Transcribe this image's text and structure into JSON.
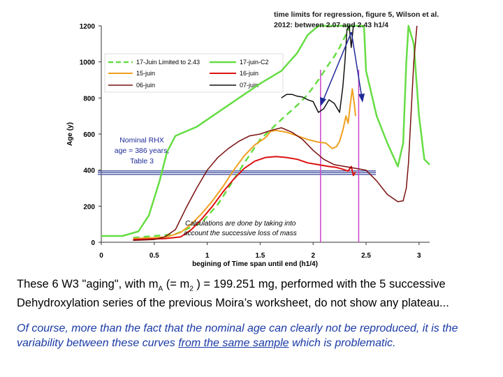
{
  "chart_data": {
    "type": "line",
    "title": "",
    "xlabel": "begining of Time span until end (h1/4)",
    "ylabel": "Age (y)",
    "xlim": [
      0,
      3.1
    ],
    "ylim": [
      0,
      1200
    ],
    "xticks": [
      "0",
      "0.5",
      "1",
      "1.5",
      "2",
      "2.5",
      "3"
    ],
    "xtick_values": [
      0,
      0.5,
      1,
      1.5,
      2,
      2.5,
      3
    ],
    "yticks": [
      "0",
      "200",
      "400",
      "600",
      "800",
      "1000",
      "1200"
    ],
    "ytick_values": [
      0,
      200,
      400,
      600,
      800,
      1000,
      1200
    ],
    "legend_position": "top-left",
    "series": [
      {
        "name": "17-Juin  Limited to 2.43",
        "color": "#66dd44",
        "dash": "dashed",
        "points": [
          [
            0.3,
            25
          ],
          [
            0.7,
            45
          ],
          [
            0.95,
            110
          ],
          [
            1.1,
            210
          ],
          [
            1.2,
            300
          ],
          [
            1.35,
            440
          ],
          [
            1.5,
            570
          ],
          [
            1.7,
            680
          ],
          [
            1.85,
            760
          ],
          [
            1.95,
            820
          ],
          [
            2.05,
            900
          ],
          [
            2.15,
            990
          ],
          [
            2.2,
            1030
          ],
          [
            2.25,
            1080
          ],
          [
            2.3,
            1140
          ],
          [
            2.35,
            1230
          ]
        ]
      },
      {
        "name": "17-juin-C2",
        "color": "#66dd44",
        "dash": "solid",
        "points": [
          [
            0,
            35
          ],
          [
            0.2,
            35
          ],
          [
            0.35,
            60
          ],
          [
            0.45,
            150
          ],
          [
            0.55,
            340
          ],
          [
            0.62,
            500
          ],
          [
            0.7,
            590
          ],
          [
            0.8,
            615
          ],
          [
            0.9,
            640
          ],
          [
            1.05,
            700
          ],
          [
            1.3,
            800
          ],
          [
            1.5,
            880
          ],
          [
            1.7,
            950
          ],
          [
            1.85,
            1050
          ],
          [
            1.95,
            1150
          ],
          [
            2.05,
            1230
          ],
          [
            2.3,
            1230
          ],
          [
            2.48,
            1230
          ],
          [
            2.5,
            950
          ],
          [
            2.6,
            700
          ],
          [
            2.7,
            550
          ],
          [
            2.8,
            420
          ],
          [
            2.85,
            550
          ],
          [
            2.88,
            1000
          ],
          [
            2.9,
            1230
          ],
          [
            2.95,
            1100
          ],
          [
            3.0,
            700
          ],
          [
            3.05,
            460
          ],
          [
            3.1,
            430
          ]
        ]
      },
      {
        "name": "15-juin",
        "color": "#f0a020",
        "dash": "solid",
        "points": [
          [
            0.3,
            20
          ],
          [
            0.5,
            25
          ],
          [
            0.62,
            30
          ],
          [
            0.75,
            55
          ],
          [
            0.85,
            100
          ],
          [
            0.95,
            160
          ],
          [
            1.05,
            230
          ],
          [
            1.15,
            310
          ],
          [
            1.25,
            400
          ],
          [
            1.35,
            480
          ],
          [
            1.45,
            540
          ],
          [
            1.55,
            580
          ],
          [
            1.6,
            615
          ],
          [
            1.65,
            620
          ],
          [
            1.75,
            610
          ],
          [
            1.85,
            590
          ],
          [
            1.95,
            570
          ],
          [
            2.05,
            555
          ],
          [
            2.12,
            550
          ],
          [
            2.18,
            520
          ],
          [
            2.22,
            530
          ],
          [
            2.25,
            560
          ],
          [
            2.28,
            620
          ],
          [
            2.31,
            700
          ],
          [
            2.33,
            660
          ],
          [
            2.35,
            760
          ],
          [
            2.37,
            850
          ],
          [
            2.39,
            760
          ],
          [
            2.4,
            700
          ]
        ]
      },
      {
        "name": "16-juin",
        "color": "#dd1111",
        "dash": "solid",
        "points": [
          [
            0.3,
            15
          ],
          [
            0.6,
            20
          ],
          [
            0.75,
            30
          ],
          [
            0.85,
            70
          ],
          [
            0.95,
            130
          ],
          [
            1.05,
            200
          ],
          [
            1.15,
            280
          ],
          [
            1.25,
            350
          ],
          [
            1.35,
            410
          ],
          [
            1.45,
            450
          ],
          [
            1.55,
            470
          ],
          [
            1.65,
            475
          ],
          [
            1.75,
            470
          ],
          [
            1.85,
            460
          ],
          [
            1.95,
            440
          ],
          [
            2.05,
            430
          ],
          [
            2.15,
            420
          ],
          [
            2.22,
            415
          ],
          [
            2.28,
            405
          ],
          [
            2.33,
            395
          ],
          [
            2.36,
            420
          ],
          [
            2.38,
            370
          ],
          [
            2.4,
            390
          ]
        ]
      },
      {
        "name": "06-juin",
        "color": "#7a1010",
        "dash": "solid",
        "points": [
          [
            0.3,
            10
          ],
          [
            0.5,
            15
          ],
          [
            0.6,
            30
          ],
          [
            0.7,
            70
          ],
          [
            0.8,
            190
          ],
          [
            0.9,
            300
          ],
          [
            1.0,
            400
          ],
          [
            1.1,
            470
          ],
          [
            1.2,
            520
          ],
          [
            1.3,
            560
          ],
          [
            1.4,
            590
          ],
          [
            1.5,
            600
          ],
          [
            1.6,
            620
          ],
          [
            1.7,
            635
          ],
          [
            1.8,
            610
          ],
          [
            1.9,
            570
          ],
          [
            2.0,
            510
          ],
          [
            2.1,
            460
          ],
          [
            2.2,
            430
          ],
          [
            2.3,
            420
          ],
          [
            2.4,
            410
          ],
          [
            2.5,
            400
          ],
          [
            2.6,
            340
          ],
          [
            2.7,
            265
          ],
          [
            2.8,
            225
          ],
          [
            2.85,
            230
          ],
          [
            2.88,
            300
          ],
          [
            2.9,
            440
          ],
          [
            2.95,
            1000
          ],
          [
            2.98,
            1230
          ]
        ]
      },
      {
        "name": "07-juin",
        "color": "#111111",
        "dash": "solid",
        "points": [
          [
            1.7,
            800
          ],
          [
            1.75,
            820
          ],
          [
            1.8,
            820
          ],
          [
            1.85,
            810
          ],
          [
            1.9,
            805
          ],
          [
            1.95,
            790
          ],
          [
            2.0,
            780
          ],
          [
            2.05,
            720
          ],
          [
            2.1,
            740
          ],
          [
            2.15,
            790
          ],
          [
            2.2,
            770
          ],
          [
            2.25,
            720
          ],
          [
            2.28,
            860
          ],
          [
            2.3,
            1000
          ],
          [
            2.32,
            1180
          ],
          [
            2.34,
            1230
          ],
          [
            2.36,
            1080
          ],
          [
            2.38,
            1230
          ]
        ]
      }
    ],
    "reference_lines": {
      "y": [
        376,
        386,
        396
      ],
      "color": "#5561a8"
    },
    "vertical_markers": {
      "x": [
        2.07,
        2.43
      ],
      "color": "#cc44cc"
    },
    "annotations": {
      "top_text": "time limits for regression, figure 5, Wilson et al. 2012: between 2.07 and 2.43 h1/4",
      "top_text_line1": "time limits for regression, figure 5, Wilson et al.",
      "top_text_line2": "2012: between 2.07 and 2.43 h1/4",
      "nominal_line1": "Nominal RHX",
      "nominal_line2": "age = 386 years,",
      "nominal_line3": "Table 3",
      "calc_line1": "Calculations are done by taking into",
      "calc_line2": "account the successive loss of mass"
    }
  },
  "caption": {
    "line1_pre": "These 6 W3 \"aging\", with m",
    "line1_sub": "A",
    "line1_mid": " (= m",
    "line1_sub2": "2",
    "line1_post": " ) = 199.251 mg, performed with the 5 successive",
    "line2": "Dehydroxylation series of the previous Moira’s worksheet, do not show any plateau...",
    "italic_pre": "Of course, more than the fact that the nominal age can clearly not  be reproduced, it is the variability between these curves ",
    "italic_underlined": "from the same sample",
    "italic_post": " which is problematic."
  }
}
